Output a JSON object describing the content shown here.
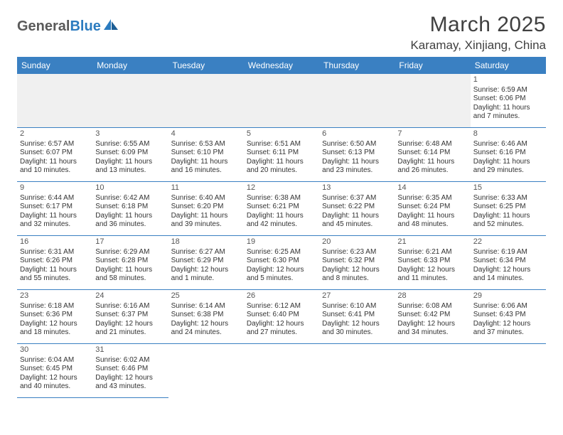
{
  "logo": {
    "general": "General",
    "blue": "Blue"
  },
  "title": "March 2025",
  "location": "Karamay, Xinjiang, China",
  "weekdays": [
    "Sunday",
    "Monday",
    "Tuesday",
    "Wednesday",
    "Thursday",
    "Friday",
    "Saturday"
  ],
  "colors": {
    "header_bg": "#3a80c2",
    "header_text": "#ffffff",
    "empty_bg": "#f0f0f0",
    "rule": "#3a80c2",
    "text": "#333333"
  },
  "leading_empty": 6,
  "days": [
    {
      "n": 1,
      "sunrise": "6:59 AM",
      "sunset": "6:06 PM",
      "daylight": "11 hours and 7 minutes."
    },
    {
      "n": 2,
      "sunrise": "6:57 AM",
      "sunset": "6:07 PM",
      "daylight": "11 hours and 10 minutes."
    },
    {
      "n": 3,
      "sunrise": "6:55 AM",
      "sunset": "6:09 PM",
      "daylight": "11 hours and 13 minutes."
    },
    {
      "n": 4,
      "sunrise": "6:53 AM",
      "sunset": "6:10 PM",
      "daylight": "11 hours and 16 minutes."
    },
    {
      "n": 5,
      "sunrise": "6:51 AM",
      "sunset": "6:11 PM",
      "daylight": "11 hours and 20 minutes."
    },
    {
      "n": 6,
      "sunrise": "6:50 AM",
      "sunset": "6:13 PM",
      "daylight": "11 hours and 23 minutes."
    },
    {
      "n": 7,
      "sunrise": "6:48 AM",
      "sunset": "6:14 PM",
      "daylight": "11 hours and 26 minutes."
    },
    {
      "n": 8,
      "sunrise": "6:46 AM",
      "sunset": "6:16 PM",
      "daylight": "11 hours and 29 minutes."
    },
    {
      "n": 9,
      "sunrise": "6:44 AM",
      "sunset": "6:17 PM",
      "daylight": "11 hours and 32 minutes."
    },
    {
      "n": 10,
      "sunrise": "6:42 AM",
      "sunset": "6:18 PM",
      "daylight": "11 hours and 36 minutes."
    },
    {
      "n": 11,
      "sunrise": "6:40 AM",
      "sunset": "6:20 PM",
      "daylight": "11 hours and 39 minutes."
    },
    {
      "n": 12,
      "sunrise": "6:38 AM",
      "sunset": "6:21 PM",
      "daylight": "11 hours and 42 minutes."
    },
    {
      "n": 13,
      "sunrise": "6:37 AM",
      "sunset": "6:22 PM",
      "daylight": "11 hours and 45 minutes."
    },
    {
      "n": 14,
      "sunrise": "6:35 AM",
      "sunset": "6:24 PM",
      "daylight": "11 hours and 48 minutes."
    },
    {
      "n": 15,
      "sunrise": "6:33 AM",
      "sunset": "6:25 PM",
      "daylight": "11 hours and 52 minutes."
    },
    {
      "n": 16,
      "sunrise": "6:31 AM",
      "sunset": "6:26 PM",
      "daylight": "11 hours and 55 minutes."
    },
    {
      "n": 17,
      "sunrise": "6:29 AM",
      "sunset": "6:28 PM",
      "daylight": "11 hours and 58 minutes."
    },
    {
      "n": 18,
      "sunrise": "6:27 AM",
      "sunset": "6:29 PM",
      "daylight": "12 hours and 1 minute."
    },
    {
      "n": 19,
      "sunrise": "6:25 AM",
      "sunset": "6:30 PM",
      "daylight": "12 hours and 5 minutes."
    },
    {
      "n": 20,
      "sunrise": "6:23 AM",
      "sunset": "6:32 PM",
      "daylight": "12 hours and 8 minutes."
    },
    {
      "n": 21,
      "sunrise": "6:21 AM",
      "sunset": "6:33 PM",
      "daylight": "12 hours and 11 minutes."
    },
    {
      "n": 22,
      "sunrise": "6:19 AM",
      "sunset": "6:34 PM",
      "daylight": "12 hours and 14 minutes."
    },
    {
      "n": 23,
      "sunrise": "6:18 AM",
      "sunset": "6:36 PM",
      "daylight": "12 hours and 18 minutes."
    },
    {
      "n": 24,
      "sunrise": "6:16 AM",
      "sunset": "6:37 PM",
      "daylight": "12 hours and 21 minutes."
    },
    {
      "n": 25,
      "sunrise": "6:14 AM",
      "sunset": "6:38 PM",
      "daylight": "12 hours and 24 minutes."
    },
    {
      "n": 26,
      "sunrise": "6:12 AM",
      "sunset": "6:40 PM",
      "daylight": "12 hours and 27 minutes."
    },
    {
      "n": 27,
      "sunrise": "6:10 AM",
      "sunset": "6:41 PM",
      "daylight": "12 hours and 30 minutes."
    },
    {
      "n": 28,
      "sunrise": "6:08 AM",
      "sunset": "6:42 PM",
      "daylight": "12 hours and 34 minutes."
    },
    {
      "n": 29,
      "sunrise": "6:06 AM",
      "sunset": "6:43 PM",
      "daylight": "12 hours and 37 minutes."
    },
    {
      "n": 30,
      "sunrise": "6:04 AM",
      "sunset": "6:45 PM",
      "daylight": "12 hours and 40 minutes."
    },
    {
      "n": 31,
      "sunrise": "6:02 AM",
      "sunset": "6:46 PM",
      "daylight": "12 hours and 43 minutes."
    }
  ],
  "labels": {
    "sunrise": "Sunrise:",
    "sunset": "Sunset:",
    "daylight": "Daylight:"
  }
}
